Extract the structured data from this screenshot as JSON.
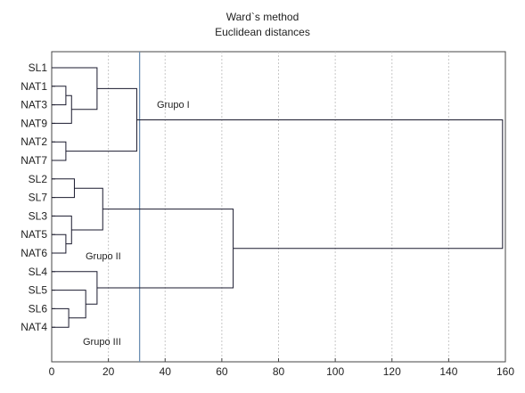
{
  "title": "Ward`s method",
  "subtitle": "Euclidean distances",
  "leaves": [
    "SL1",
    "NAT1",
    "NAT3",
    "NAT9",
    "NAT2",
    "NAT7",
    "SL2",
    "SL7",
    "SL3",
    "NAT5",
    "NAT6",
    "SL4",
    "SL5",
    "SL6",
    "NAT4"
  ],
  "x_axis": {
    "min": 0,
    "max": 160,
    "ticks": [
      0,
      20,
      40,
      60,
      80,
      100,
      120,
      140,
      160
    ]
  },
  "cut_line": 31,
  "group_labels": [
    "Grupo I",
    "Grupo II",
    "Grupo III"
  ],
  "merges": [
    {
      "a": "NAT1",
      "b": "NAT3",
      "height": 5
    },
    {
      "a": "NAT1,NAT3",
      "b": "NAT9",
      "height": 7
    },
    {
      "a": "SL1",
      "b": "NAT1,NAT3,NAT9",
      "height": 16
    },
    {
      "a": "NAT2",
      "b": "NAT7",
      "height": 5
    },
    {
      "a": "SL1,NAT1,NAT3,NAT9",
      "b": "NAT2,NAT7",
      "height": 30
    },
    {
      "a": "SL2",
      "b": "SL7",
      "height": 8
    },
    {
      "a": "NAT5",
      "b": "NAT6",
      "height": 5
    },
    {
      "a": "SL3",
      "b": "NAT5,NAT6",
      "height": 7
    },
    {
      "a": "SL2,SL7",
      "b": "SL3,NAT5,NAT6",
      "height": 18
    },
    {
      "a": "SL6",
      "b": "NAT4",
      "height": 6
    },
    {
      "a": "SL5",
      "b": "SL6,NAT4",
      "height": 12
    },
    {
      "a": "SL4",
      "b": "SL5,SL6,NAT4",
      "height": 16
    },
    {
      "a": "SL2,SL7,SL3,NAT5,NAT6",
      "b": "SL4,SL5,SL6,NAT4",
      "height": 64
    },
    {
      "a": "Grupo I",
      "b": "Grupo II+III",
      "height": 159
    }
  ],
  "colors": {
    "line": "#1a1a2e",
    "grid": "#c8c8c8",
    "cut": "#6c8fb3",
    "text": "#222222"
  }
}
